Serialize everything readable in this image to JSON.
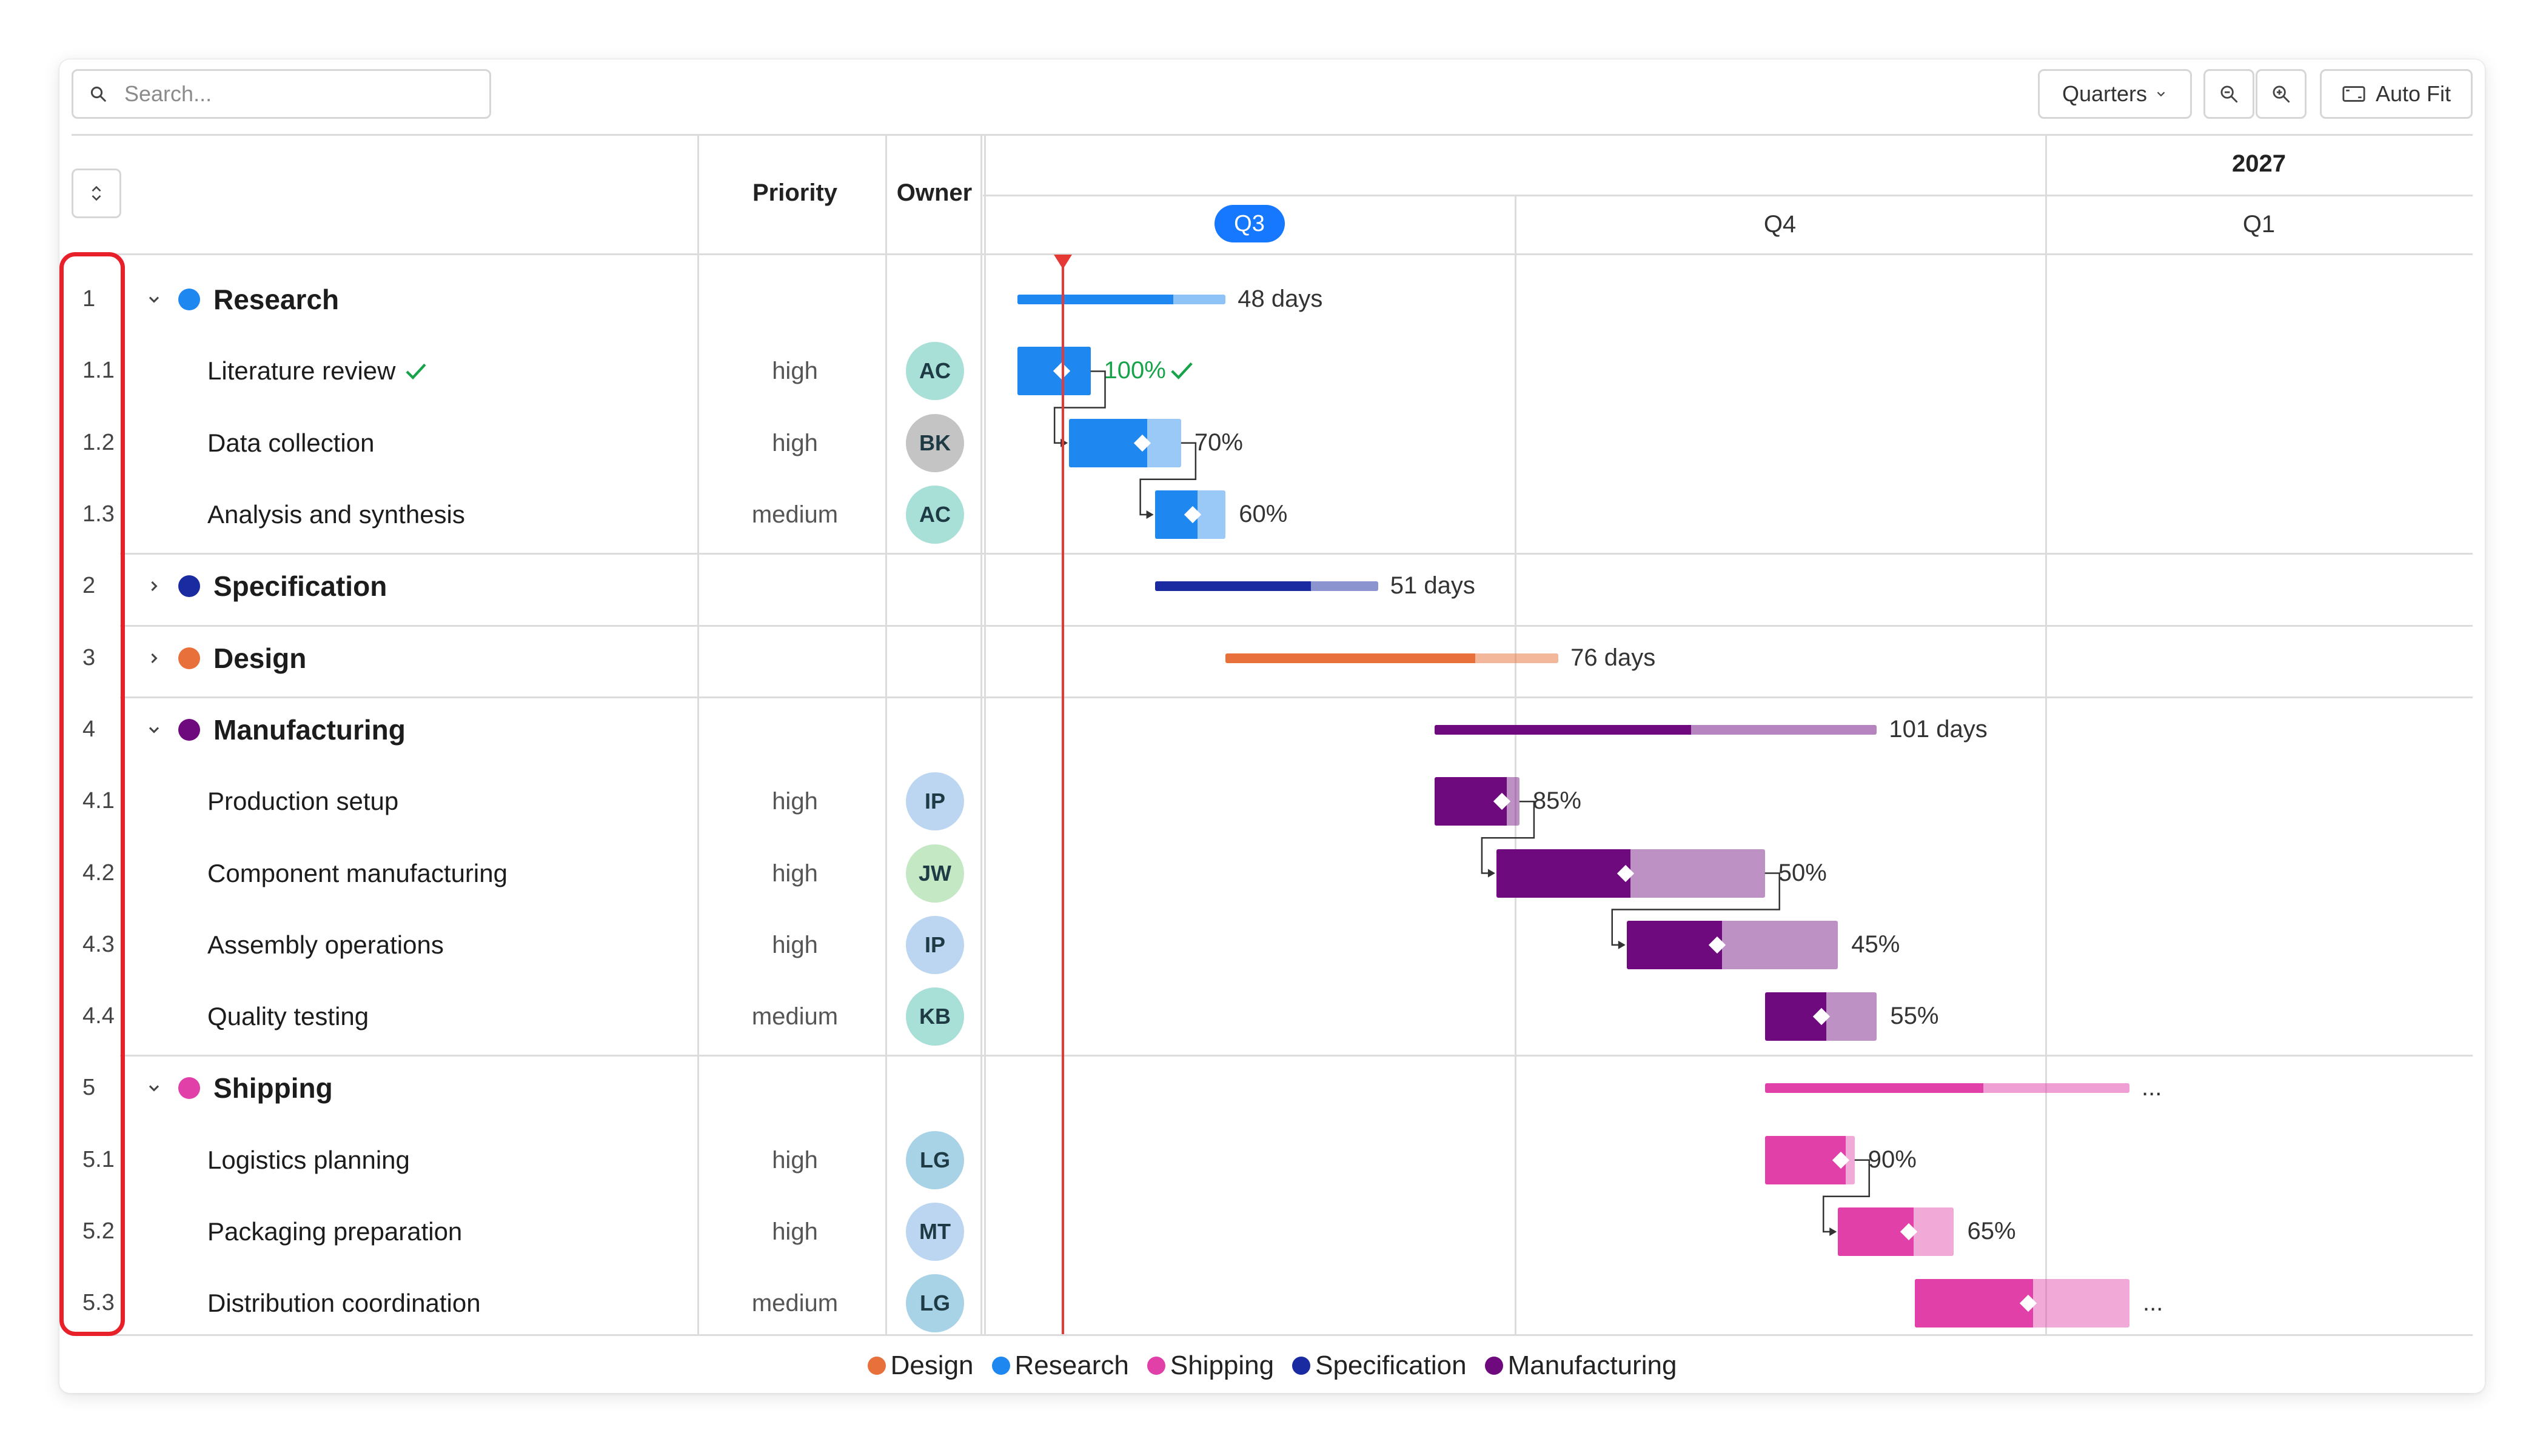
{
  "toolbar": {
    "search_placeholder": "Search...",
    "zoom_level": "Quarters",
    "auto_fit_label": "Auto Fit"
  },
  "columns": {
    "priority": "Priority",
    "owner": "Owner"
  },
  "timeline": {
    "year": "2027",
    "quarters": [
      {
        "label": "Q3",
        "current": true
      },
      {
        "label": "Q4",
        "current": false
      },
      {
        "label": "Q1",
        "current": false
      }
    ]
  },
  "colors": {
    "Research": "#1e88f0",
    "Specification": "#1a2aa0",
    "Design": "#e8703a",
    "Manufacturing": "#6e0a7e",
    "Shipping": "#e040a8",
    "today_line": "#e53935",
    "done_check": "#17a34a"
  },
  "rows": [
    {
      "num": "1",
      "name": "Research",
      "group": "Research",
      "type": "group",
      "expanded": true,
      "label": "48 days",
      "start": 0.0,
      "end": 0.262,
      "progress": 0.75
    },
    {
      "num": "1.1",
      "name": "Literature review",
      "group": "Research",
      "type": "task",
      "priority": "high",
      "owner": "AC",
      "done": true,
      "label": "100%",
      "start": 0.0,
      "end": 0.092,
      "progress": 1.0
    },
    {
      "num": "1.2",
      "name": "Data collection",
      "group": "Research",
      "type": "task",
      "priority": "high",
      "owner": "BK",
      "label": "70%",
      "start": 0.065,
      "end": 0.206,
      "progress": 0.7
    },
    {
      "num": "1.3",
      "name": "Analysis and synthesis",
      "group": "Research",
      "type": "task",
      "priority": "medium",
      "owner": "AC",
      "label": "60%",
      "start": 0.173,
      "end": 0.262,
      "progress": 0.6
    },
    {
      "num": "2",
      "name": "Specification",
      "group": "Specification",
      "type": "group",
      "expanded": false,
      "label": "51 days",
      "start": 0.173,
      "end": 0.454,
      "progress": 0.7
    },
    {
      "num": "3",
      "name": "Design",
      "group": "Design",
      "type": "group",
      "expanded": false,
      "label": "76 days",
      "start": 0.262,
      "end": 0.681,
      "progress": 0.75
    },
    {
      "num": "4",
      "name": "Manufacturing",
      "group": "Manufacturing",
      "type": "group",
      "expanded": true,
      "label": "101 days",
      "start": 0.525,
      "end": 1.082,
      "progress": 0.58
    },
    {
      "num": "4.1",
      "name": "Production setup",
      "group": "Manufacturing",
      "type": "task",
      "priority": "high",
      "owner": "IP",
      "label": "85%",
      "start": 0.525,
      "end": 0.632,
      "progress": 0.85
    },
    {
      "num": "4.2",
      "name": "Component manufacturing",
      "group": "Manufacturing",
      "type": "task",
      "priority": "high",
      "owner": "JW",
      "label": "50%",
      "start": 0.603,
      "end": 0.941,
      "progress": 0.5
    },
    {
      "num": "4.3",
      "name": "Assembly operations",
      "group": "Manufacturing",
      "type": "task",
      "priority": "high",
      "owner": "IP",
      "label": "45%",
      "start": 0.767,
      "end": 1.033,
      "progress": 0.45
    },
    {
      "num": "4.4",
      "name": "Quality testing",
      "group": "Manufacturing",
      "type": "task",
      "priority": "medium",
      "owner": "KB",
      "label": "55%",
      "start": 0.941,
      "end": 1.082,
      "progress": 0.55
    },
    {
      "num": "5",
      "name": "Shipping",
      "group": "Shipping",
      "type": "group",
      "expanded": true,
      "label": "...",
      "start": 0.941,
      "end": 1.4,
      "progress": 0.6
    },
    {
      "num": "5.1",
      "name": "Logistics planning",
      "group": "Shipping",
      "type": "task",
      "priority": "high",
      "owner": "LG",
      "label": "90%",
      "start": 0.941,
      "end": 1.054,
      "progress": 0.9
    },
    {
      "num": "5.2",
      "name": "Packaging preparation",
      "group": "Shipping",
      "type": "task",
      "priority": "high",
      "owner": "MT",
      "label": "65%",
      "start": 1.033,
      "end": 1.179,
      "progress": 0.65
    },
    {
      "num": "5.3",
      "name": "Distribution coordination",
      "group": "Shipping",
      "type": "task",
      "priority": "medium",
      "owner": "LG",
      "label": "...",
      "start": 1.13,
      "end": 1.4,
      "progress": 0.55
    }
  ],
  "dependencies": [
    [
      "1.1",
      "1.2"
    ],
    [
      "1.2",
      "1.3"
    ],
    [
      "4.1",
      "4.2"
    ],
    [
      "4.2",
      "4.3"
    ],
    [
      "5.1",
      "5.2"
    ]
  ],
  "today": 0.057,
  "avatars": {
    "AC": "#a8e0d8",
    "BK": "#c4c4c4",
    "IP": "#bcd6f2",
    "JW": "#c4e8c4",
    "KB": "#a8e0d8",
    "LG": "#a8d2e6",
    "MT": "#bcd6f2"
  },
  "legend": [
    "Design",
    "Research",
    "Shipping",
    "Specification",
    "Manufacturing"
  ]
}
